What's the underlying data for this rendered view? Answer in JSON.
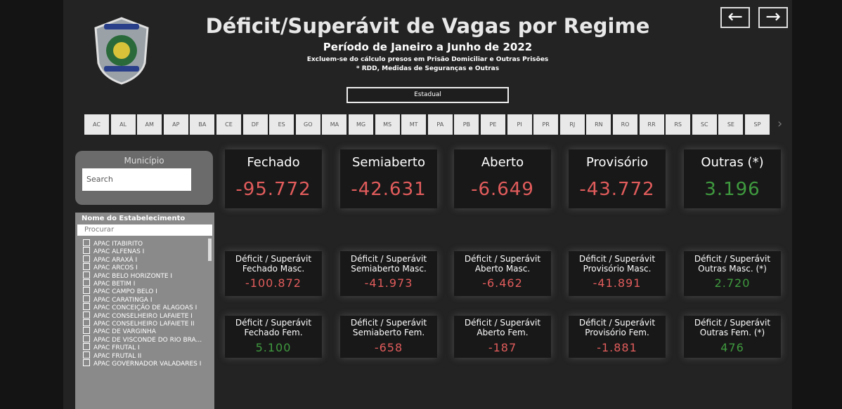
{
  "header": {
    "title": "Déficit/Superávit de Vagas por Regime",
    "subtitle": "Período de Janeiro a Junho de 2022",
    "notes": [
      "Excluem-se do cálculo presos em Prisão Domiciliar e Outras Prisões",
      "* RDD, Medidas de Seguranças e Outras"
    ]
  },
  "dropdown": "Estadual",
  "states": [
    "AC",
    "AL",
    "AM",
    "AP",
    "BA",
    "CE",
    "DF",
    "ES",
    "GO",
    "MA",
    "MG",
    "MS",
    "MT",
    "PA",
    "PB",
    "PE",
    "PI",
    "PR",
    "RJ",
    "RN",
    "RO",
    "RR",
    "RS",
    "SC",
    "SE",
    "SP"
  ],
  "municipio": {
    "title": "Município",
    "search_placeholder": "Search"
  },
  "establishments": {
    "title": "Nome do Estabelecimento",
    "search_placeholder": "Procurar",
    "items": [
      "APAC ITABIRITO",
      "APAC ALFENAS I",
      "APAC ARAXÁ I",
      "APAC ARCOS I",
      "APAC BELO HORIZONTE I",
      "APAC BETIM I",
      "APAC CAMPO BELO I",
      "APAC CARATINGA I",
      "APAC CONCEIÇÃO DE ALAGOAS I",
      "APAC CONSELHEIRO LAFAIETE I",
      "APAC CONSELHEIRO LAFAIETE II",
      "APAC DE VARGINHA",
      "APAC DE VISCONDE DO RIO BRA...",
      "APAC FRUTAL I",
      "APAC FRUTAL II",
      "APAC GOVERNADOR VALADARES I"
    ]
  },
  "cards": [
    [
      {
        "label_lines": [
          "Fechado"
        ],
        "value": "-95.772"
      },
      {
        "label_lines": [
          "Semiaberto"
        ],
        "value": "-42.631"
      },
      {
        "label_lines": [
          "Aberto"
        ],
        "value": "-6.649"
      },
      {
        "label_lines": [
          "Provisório"
        ],
        "value": "-43.772"
      },
      {
        "label_lines": [
          "Outras (*)"
        ],
        "value": "3.196"
      }
    ],
    [
      {
        "label_lines": [
          "Déficit / Superávit",
          "Fechado Masc."
        ],
        "value": "-100.872"
      },
      {
        "label_lines": [
          "Déficit / Superávit",
          "Semiaberto Masc."
        ],
        "value": "-41.973"
      },
      {
        "label_lines": [
          "Déficit / Superávit",
          "Aberto Masc."
        ],
        "value": "-6.462"
      },
      {
        "label_lines": [
          "Déficit / Superávit",
          "Provisório Masc."
        ],
        "value": "-41.891"
      },
      {
        "label_lines": [
          "Déficit / Superávit",
          "Outras Masc. (*)"
        ],
        "value": "2.720"
      }
    ],
    [
      {
        "label_lines": [
          "Déficit / Superávit",
          "Fechado Fem."
        ],
        "value": "5.100"
      },
      {
        "label_lines": [
          "Déficit / Superávit",
          "Semiaberto Fem."
        ],
        "value": "-658"
      },
      {
        "label_lines": [
          "Déficit / Superávit",
          "Aberto Fem."
        ],
        "value": "-187"
      },
      {
        "label_lines": [
          "Déficit / Superávit",
          "Provisório Fem."
        ],
        "value": "-1.881"
      },
      {
        "label_lines": [
          "Déficit / Superávit",
          "Outras Fem. (*)"
        ],
        "value": "476"
      }
    ]
  ]
}
